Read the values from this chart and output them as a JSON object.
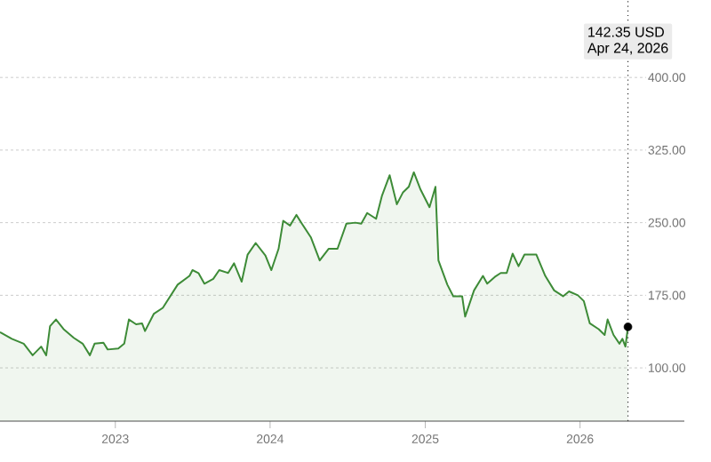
{
  "chart_data": {
    "type": "area",
    "xlim": [
      "2022-04-04",
      "2026-09-04"
    ],
    "ylim": [
      45,
      480
    ],
    "xticks": [
      {
        "value": "2023-01-01",
        "label": "2023"
      },
      {
        "value": "2024-01-01",
        "label": "2024"
      },
      {
        "value": "2025-01-01",
        "label": "2025"
      },
      {
        "value": "2026-01-01",
        "label": "2026"
      }
    ],
    "yticks": [
      {
        "value": 100,
        "label": "100.00"
      },
      {
        "value": 175,
        "label": "175.00"
      },
      {
        "value": 250,
        "label": "250.00"
      },
      {
        "value": 325,
        "label": "325.00"
      },
      {
        "value": 400,
        "label": "400.00"
      }
    ],
    "grid": "y",
    "series": [
      {
        "color": "#3d8b37",
        "x": [
          "2022-04-04",
          "2022-05-02",
          "2022-05-30",
          "2022-06-20",
          "2022-07-10",
          "2022-07-22",
          "2022-07-31",
          "2022-08-14",
          "2022-09-01",
          "2022-09-25",
          "2022-10-16",
          "2022-11-02",
          "2022-11-13",
          "2022-12-04",
          "2022-12-14",
          "2023-01-08",
          "2023-01-22",
          "2023-02-02",
          "2023-02-19",
          "2023-03-05",
          "2023-03-12",
          "2023-04-02",
          "2023-04-23",
          "2023-05-28",
          "2023-06-25",
          "2023-07-02",
          "2023-07-16",
          "2023-07-30",
          "2023-08-20",
          "2023-09-03",
          "2023-09-24",
          "2023-10-08",
          "2023-10-26",
          "2023-11-09",
          "2023-11-28",
          "2023-12-21",
          "2024-01-04",
          "2024-01-21",
          "2024-02-01",
          "2024-02-17",
          "2024-03-03",
          "2024-03-16",
          "2024-04-06",
          "2024-04-27",
          "2024-05-18",
          "2024-06-08",
          "2024-06-29",
          "2024-07-20",
          "2024-08-03",
          "2024-08-17",
          "2024-09-07",
          "2024-09-21",
          "2024-10-09",
          "2024-10-26",
          "2024-11-09",
          "2024-11-23",
          "2024-12-05",
          "2024-12-21",
          "2025-01-11",
          "2025-01-25",
          "2025-02-01",
          "2025-02-22",
          "2025-03-08",
          "2025-03-29",
          "2025-04-05",
          "2025-04-26",
          "2025-05-17",
          "2025-05-27",
          "2025-06-14",
          "2025-06-28",
          "2025-07-12",
          "2025-07-26",
          "2025-08-09",
          "2025-08-23",
          "2025-09-20",
          "2025-10-11",
          "2025-11-01",
          "2025-11-22",
          "2025-12-06",
          "2025-12-27",
          "2026-01-10",
          "2026-01-24",
          "2026-02-14",
          "2026-02-28",
          "2026-03-07",
          "2026-03-21",
          "2026-04-04",
          "2026-04-11",
          "2026-04-18",
          "2026-04-24"
        ],
        "values": [
          137,
          130,
          125,
          113,
          122,
          113,
          143,
          150,
          140,
          131,
          125,
          113,
          125,
          126,
          119,
          120,
          125,
          150,
          145,
          146,
          138,
          156,
          162,
          186,
          195,
          201,
          198,
          187,
          192,
          201,
          198,
          208,
          189,
          217,
          229,
          216,
          201,
          223,
          252,
          247,
          258,
          249,
          235,
          211,
          223,
          223,
          249,
          250,
          249,
          260,
          254,
          278,
          299,
          269,
          281,
          287,
          302,
          284,
          266,
          287,
          211,
          186,
          174,
          174,
          153,
          180,
          195,
          187,
          194,
          198,
          198,
          218,
          205,
          217,
          217,
          195,
          180,
          174,
          179,
          175,
          169,
          146,
          140,
          134,
          150,
          134,
          125,
          130,
          122,
          142.35
        ]
      },
      {
        "type": "scatter",
        "marker": "circle",
        "color": "#000000",
        "x": [
          "2026-04-24"
        ],
        "values": [
          142.35
        ]
      }
    ],
    "ref_lines": [
      {
        "axis": "x",
        "value": "2026-04-24",
        "line_style": "dotted",
        "color": "#333333"
      }
    ],
    "annotations": [
      "142.35 USD",
      "Apr 24, 2026"
    ]
  }
}
